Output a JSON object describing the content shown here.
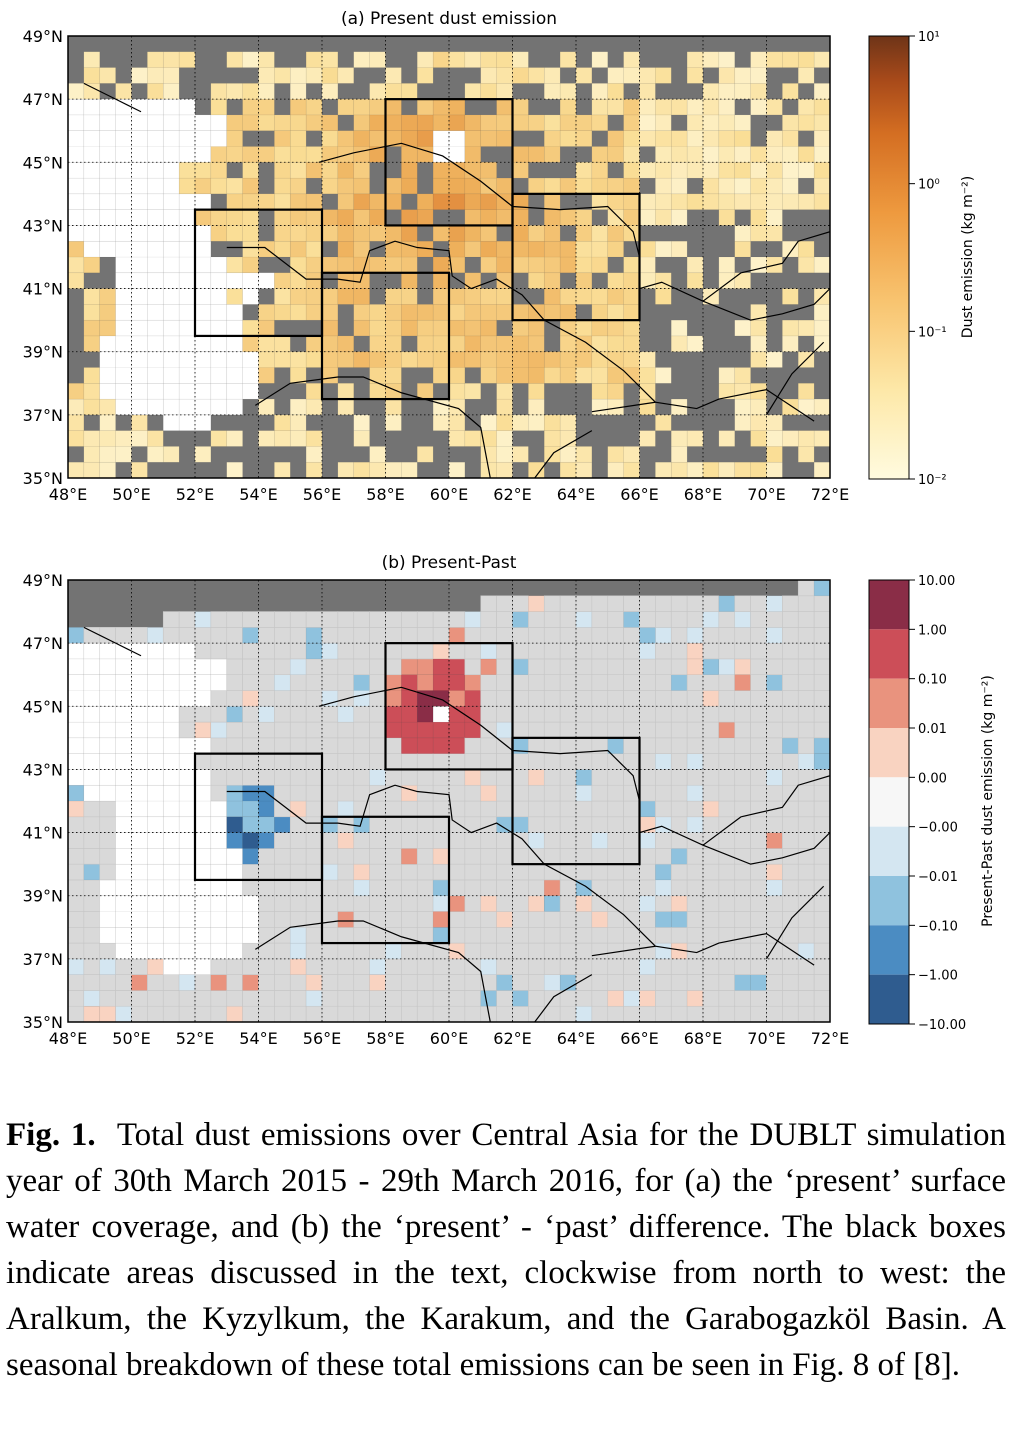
{
  "panel_a": {
    "title": "(a) Present dust emission",
    "lat_labels": [
      "49°N",
      "47°N",
      "45°N",
      "43°N",
      "41°N",
      "39°N",
      "37°N",
      "35°N"
    ],
    "lon_labels": [
      "48°E",
      "50°E",
      "52°E",
      "54°E",
      "56°E",
      "58°E",
      "60°E",
      "62°E",
      "64°E",
      "66°E",
      "68°E",
      "70°E",
      "72°E"
    ],
    "colorbar": {
      "label": "Dust emission (kg m⁻²)",
      "scale": "log",
      "colormap": "YlOrBr",
      "tick_labels": [
        "10¹",
        "10⁰",
        "10⁻¹",
        "10⁻²"
      ],
      "range": [
        0.01,
        10
      ]
    }
  },
  "panel_b": {
    "title": "(b) Present-Past",
    "lat_labels": [
      "49°N",
      "47°N",
      "45°N",
      "43°N",
      "41°N",
      "39°N",
      "37°N",
      "35°N"
    ],
    "lon_labels": [
      "48°E",
      "50°E",
      "52°E",
      "54°E",
      "56°E",
      "58°E",
      "60°E",
      "62°E",
      "64°E",
      "66°E",
      "68°E",
      "70°E",
      "72°E"
    ],
    "colorbar": {
      "label": "Present-Past dust emission (kg m⁻²)",
      "colormap": "RdBu_r",
      "tick_labels": [
        "10.00",
        "1.00",
        "0.10",
        "0.01",
        "0.00",
        "−0.00",
        "−0.01",
        "−0.10",
        "−1.00",
        "−10.00"
      ],
      "colors": [
        "#8a2d47",
        "#cc4e58",
        "#e9937e",
        "#f9d3c1",
        "#f7f7f7",
        "#d4e6f1",
        "#8fc2de",
        "#4b8cc2",
        "#2f5c8f"
      ]
    }
  },
  "study_boxes": [
    {
      "name": "Aralkum",
      "lon": [
        58,
        62
      ],
      "lat": [
        43,
        47
      ]
    },
    {
      "name": "Kyzylkum",
      "lon": [
        62,
        66
      ],
      "lat": [
        40,
        44
      ]
    },
    {
      "name": "Karakum",
      "lon": [
        56,
        60
      ],
      "lat": [
        37.5,
        41.5
      ]
    },
    {
      "name": "Garabogazköl Basin",
      "lon": [
        52,
        56
      ],
      "lat": [
        39.5,
        43.5
      ]
    }
  ],
  "colors": {
    "no_data": "#737373",
    "water": "#ffffff",
    "grid_cell_b": "#d9d9d9"
  },
  "caption": {
    "label": "Fig. 1.",
    "text": "Total dust emissions over Central Asia for the DUBLT simulation year of 30th March 2015 - 29th March 2016, for (a) the ‘present’ surface water coverage, and (b) the ‘present’ - ‘past’ difference. The black boxes indicate areas discussed in the text, clockwise from north to west: the Aralkum, the Kyzylkum, the Karakum, and the Garabogazköl Basin. A seasonal breakdown of these total emissions can be seen in Fig. 8 of [8]."
  }
}
